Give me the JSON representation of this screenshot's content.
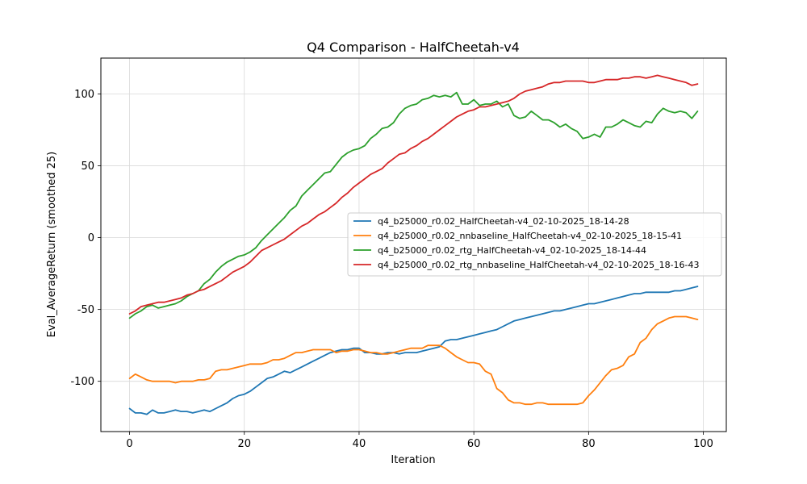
{
  "chart_data": {
    "type": "line",
    "title": "Q4 Comparison - HalfCheetah-v4",
    "xlabel": "Iteration",
    "ylabel": "Eval_AverageReturn (smoothed 25)",
    "xlim": [
      -5,
      104
    ],
    "ylim": [
      -135,
      125
    ],
    "xticks": [
      0,
      20,
      40,
      60,
      80,
      100
    ],
    "yticks": [
      -100,
      -50,
      0,
      50,
      100
    ],
    "grid": true,
    "legend_position": "center-right",
    "series": [
      {
        "name": "q4_b25000_r0.02_HalfCheetah-v4_02-10-2025_18-14-28",
        "color": "#1f77b4",
        "x": [
          0,
          1,
          2,
          3,
          4,
          5,
          6,
          7,
          8,
          9,
          10,
          11,
          12,
          13,
          14,
          15,
          16,
          17,
          18,
          19,
          20,
          21,
          22,
          23,
          24,
          25,
          26,
          27,
          28,
          29,
          30,
          31,
          32,
          33,
          34,
          35,
          36,
          37,
          38,
          39,
          40,
          41,
          42,
          43,
          44,
          45,
          46,
          47,
          48,
          49,
          50,
          51,
          52,
          53,
          54,
          55,
          56,
          57,
          58,
          59,
          60,
          61,
          62,
          63,
          64,
          65,
          66,
          67,
          68,
          69,
          70,
          71,
          72,
          73,
          74,
          75,
          76,
          77,
          78,
          79,
          80,
          81,
          82,
          83,
          84,
          85,
          86,
          87,
          88,
          89,
          90,
          91,
          92,
          93,
          94,
          95,
          96,
          97,
          98,
          99
        ],
        "y": [
          -119,
          -122,
          -122,
          -123,
          -120,
          -122,
          -122,
          -121,
          -120,
          -121,
          -121,
          -122,
          -121,
          -120,
          -121,
          -119,
          -117,
          -115,
          -112,
          -110,
          -109,
          -107,
          -104,
          -101,
          -98,
          -97,
          -95,
          -93,
          -94,
          -92,
          -90,
          -88,
          -86,
          -84,
          -82,
          -80,
          -79,
          -78,
          -78,
          -77,
          -77,
          -80,
          -80,
          -81,
          -81,
          -80,
          -80,
          -81,
          -80,
          -80,
          -80,
          -79,
          -78,
          -77,
          -76,
          -72,
          -71,
          -71,
          -70,
          -69,
          -68,
          -67,
          -66,
          -65,
          -64,
          -62,
          -60,
          -58,
          -57,
          -56,
          -55,
          -54,
          -53,
          -52,
          -51,
          -51,
          -50,
          -49,
          -48,
          -47,
          -46,
          -46,
          -45,
          -44,
          -43,
          -42,
          -41,
          -40,
          -39,
          -39,
          -38,
          -38,
          -38,
          -38,
          -38,
          -37,
          -37,
          -36,
          -35,
          -34
        ]
      },
      {
        "name": "q4_b25000_r0.02_nnbaseline_HalfCheetah-v4_02-10-2025_18-15-41",
        "color": "#ff7f0e",
        "x": [
          0,
          1,
          2,
          3,
          4,
          5,
          6,
          7,
          8,
          9,
          10,
          11,
          12,
          13,
          14,
          15,
          16,
          17,
          18,
          19,
          20,
          21,
          22,
          23,
          24,
          25,
          26,
          27,
          28,
          29,
          30,
          31,
          32,
          33,
          34,
          35,
          36,
          37,
          38,
          39,
          40,
          41,
          42,
          43,
          44,
          45,
          46,
          47,
          48,
          49,
          50,
          51,
          52,
          53,
          54,
          55,
          56,
          57,
          58,
          59,
          60,
          61,
          62,
          63,
          64,
          65,
          66,
          67,
          68,
          69,
          70,
          71,
          72,
          73,
          74,
          75,
          76,
          77,
          78,
          79,
          80,
          81,
          82,
          83,
          84,
          85,
          86,
          87,
          88,
          89,
          90,
          91,
          92,
          93,
          94,
          95,
          96,
          97,
          98,
          99
        ],
        "y": [
          -98,
          -95,
          -97,
          -99,
          -100,
          -100,
          -100,
          -100,
          -101,
          -100,
          -100,
          -100,
          -99,
          -99,
          -98,
          -93,
          -92,
          -92,
          -91,
          -90,
          -89,
          -88,
          -88,
          -88,
          -87,
          -85,
          -85,
          -84,
          -82,
          -80,
          -80,
          -79,
          -78,
          -78,
          -78,
          -78,
          -80,
          -79,
          -79,
          -78,
          -78,
          -79,
          -80,
          -80,
          -81,
          -81,
          -80,
          -79,
          -78,
          -77,
          -77,
          -77,
          -75,
          -75,
          -75,
          -77,
          -80,
          -83,
          -85,
          -87,
          -87,
          -88,
          -93,
          -95,
          -105,
          -108,
          -113,
          -115,
          -115,
          -116,
          -116,
          -115,
          -115,
          -116,
          -116,
          -116,
          -116,
          -116,
          -116,
          -115,
          -110,
          -106,
          -101,
          -96,
          -92,
          -91,
          -89,
          -83,
          -81,
          -73,
          -70,
          -64,
          -60,
          -58,
          -56,
          -55,
          -55,
          -55,
          -56,
          -57
        ]
      },
      {
        "name": "q4_b25000_r0.02_rtg_HalfCheetah-v4_02-10-2025_18-14-44",
        "color": "#2ca02c",
        "x": [
          0,
          1,
          2,
          3,
          4,
          5,
          6,
          7,
          8,
          9,
          10,
          11,
          12,
          13,
          14,
          15,
          16,
          17,
          18,
          19,
          20,
          21,
          22,
          23,
          24,
          25,
          26,
          27,
          28,
          29,
          30,
          31,
          32,
          33,
          34,
          35,
          36,
          37,
          38,
          39,
          40,
          41,
          42,
          43,
          44,
          45,
          46,
          47,
          48,
          49,
          50,
          51,
          52,
          53,
          54,
          55,
          56,
          57,
          58,
          59,
          60,
          61,
          62,
          63,
          64,
          65,
          66,
          67,
          68,
          69,
          70,
          71,
          72,
          73,
          74,
          75,
          76,
          77,
          78,
          79,
          80,
          81,
          82,
          83,
          84,
          85,
          86,
          87,
          88,
          89,
          90,
          91,
          92,
          93,
          94,
          95,
          96,
          97,
          98,
          99
        ],
        "y": [
          -56,
          -53,
          -51,
          -48,
          -47,
          -49,
          -48,
          -47,
          -46,
          -44,
          -41,
          -39,
          -37,
          -32,
          -29,
          -24,
          -20,
          -17,
          -15,
          -13,
          -12,
          -10,
          -7,
          -2,
          2,
          6,
          10,
          14,
          19,
          22,
          29,
          33,
          37,
          41,
          45,
          46,
          51,
          56,
          59,
          61,
          62,
          64,
          69,
          72,
          76,
          77,
          80,
          86,
          90,
          92,
          93,
          96,
          97,
          99,
          98,
          99,
          98,
          101,
          93,
          93,
          96,
          92,
          93,
          93,
          95,
          91,
          93,
          85,
          83,
          84,
          88,
          85,
          82,
          82,
          80,
          77,
          79,
          76,
          74,
          69,
          70,
          72,
          70,
          77,
          77,
          79,
          82,
          80,
          78,
          77,
          81,
          80,
          86,
          90,
          88,
          87,
          88,
          87,
          83,
          88
        ]
      },
      {
        "name": "q4_b25000_r0.02_rtg_nnbaseline_HalfCheetah-v4_02-10-2025_18-16-43",
        "color": "#d62728",
        "x": [
          0,
          1,
          2,
          3,
          4,
          5,
          6,
          7,
          8,
          9,
          10,
          11,
          12,
          13,
          14,
          15,
          16,
          17,
          18,
          19,
          20,
          21,
          22,
          23,
          24,
          25,
          26,
          27,
          28,
          29,
          30,
          31,
          32,
          33,
          34,
          35,
          36,
          37,
          38,
          39,
          40,
          41,
          42,
          43,
          44,
          45,
          46,
          47,
          48,
          49,
          50,
          51,
          52,
          53,
          54,
          55,
          56,
          57,
          58,
          59,
          60,
          61,
          62,
          63,
          64,
          65,
          66,
          67,
          68,
          69,
          70,
          71,
          72,
          73,
          74,
          75,
          76,
          77,
          78,
          79,
          80,
          81,
          82,
          83,
          84,
          85,
          86,
          87,
          88,
          89,
          90,
          91,
          92,
          93,
          94,
          95,
          96,
          97,
          98,
          99
        ],
        "y": [
          -53,
          -51,
          -48,
          -47,
          -46,
          -45,
          -45,
          -44,
          -43,
          -42,
          -40,
          -39,
          -37,
          -36,
          -34,
          -32,
          -30,
          -27,
          -24,
          -22,
          -20,
          -17,
          -13,
          -9,
          -7,
          -5,
          -3,
          -1,
          2,
          5,
          8,
          10,
          13,
          16,
          18,
          21,
          24,
          28,
          31,
          35,
          38,
          41,
          44,
          46,
          48,
          52,
          55,
          58,
          59,
          62,
          64,
          67,
          69,
          72,
          75,
          78,
          81,
          84,
          86,
          88,
          89,
          91,
          91,
          92,
          93,
          94,
          95,
          97,
          100,
          102,
          103,
          104,
          105,
          107,
          108,
          108,
          109,
          109,
          109,
          109,
          108,
          108,
          109,
          110,
          110,
          110,
          111,
          111,
          112,
          112,
          111,
          112,
          113,
          112,
          111,
          110,
          109,
          108,
          106,
          107
        ]
      }
    ]
  }
}
